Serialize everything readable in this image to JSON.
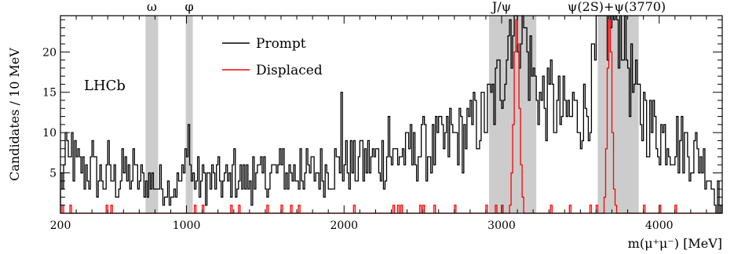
{
  "chart_data": {
    "type": "line",
    "subtype": "step-histogram",
    "xlabel": "m(μ⁺μ⁻) [MeV]",
    "ylabel": "Candidates / 10 MeV",
    "xlim": [
      200,
      4400
    ],
    "ylim": [
      0,
      24.5
    ],
    "bin_width": 10,
    "xticks": [
      200,
      1000,
      2000,
      3000,
      4000
    ],
    "yticks": [
      5,
      10,
      15,
      20
    ],
    "experiment_label": "LHCb",
    "legend": {
      "placement": "top-center",
      "entries": [
        {
          "name": "Prompt",
          "color": "#000000"
        },
        {
          "name": "Displaced",
          "color": "#ff0000"
        }
      ]
    },
    "shaded_regions": [
      {
        "label": "ω",
        "range": [
          740,
          820
        ],
        "color": "#cccccc"
      },
      {
        "label": "φ",
        "range": [
          995,
          1040
        ],
        "color": "#cccccc"
      },
      {
        "label": "J/ψ",
        "range": [
          2920,
          3220
        ],
        "color": "#cccccc"
      },
      {
        "label": "ψ(2S)+ψ(3770)",
        "range": [
          3610,
          3870
        ],
        "color": "#cccccc"
      }
    ],
    "series": [
      {
        "name": "Prompt",
        "color": "#000000",
        "anchors": [
          [
            200,
            4
          ],
          [
            260,
            6
          ],
          [
            300,
            6
          ],
          [
            400,
            5
          ],
          [
            500,
            4
          ],
          [
            600,
            4.5
          ],
          [
            700,
            4
          ],
          [
            800,
            4
          ],
          [
            900,
            3.5
          ],
          [
            990,
            4
          ],
          [
            1000,
            10
          ],
          [
            1010,
            13
          ],
          [
            1020,
            8
          ],
          [
            1030,
            4
          ],
          [
            1100,
            4
          ],
          [
            1200,
            4
          ],
          [
            1300,
            4
          ],
          [
            1400,
            4
          ],
          [
            1500,
            4.5
          ],
          [
            1600,
            5
          ],
          [
            1700,
            5
          ],
          [
            1800,
            5
          ],
          [
            1900,
            5.5
          ],
          [
            2000,
            6
          ],
          [
            2100,
            6
          ],
          [
            2200,
            6.5
          ],
          [
            2300,
            7
          ],
          [
            2400,
            7
          ],
          [
            2500,
            7.5
          ],
          [
            2600,
            8
          ],
          [
            2700,
            9
          ],
          [
            2800,
            10
          ],
          [
            2900,
            12
          ],
          [
            2950,
            14
          ],
          [
            3000,
            17
          ],
          [
            3040,
            21
          ],
          [
            3060,
            24.5
          ],
          [
            3140,
            24.5
          ],
          [
            3160,
            20
          ],
          [
            3200,
            17
          ],
          [
            3250,
            14
          ],
          [
            3300,
            13
          ],
          [
            3400,
            12
          ],
          [
            3500,
            12
          ],
          [
            3560,
            14
          ],
          [
            3600,
            19
          ],
          [
            3620,
            24.5
          ],
          [
            3720,
            24.5
          ],
          [
            3770,
            24.5
          ],
          [
            3800,
            19
          ],
          [
            3850,
            14
          ],
          [
            3900,
            12
          ],
          [
            4000,
            10
          ],
          [
            4100,
            9
          ],
          [
            4200,
            8
          ],
          [
            4300,
            6
          ],
          [
            4350,
            3
          ],
          [
            4400,
            1
          ]
        ],
        "spikes": [
          [
            230,
            10
          ],
          [
            270,
            10
          ],
          [
            400,
            9
          ],
          [
            500,
            9
          ],
          [
            590,
            8
          ],
          [
            660,
            8
          ],
          [
            1300,
            8
          ],
          [
            1420,
            7
          ],
          [
            1610,
            8
          ],
          [
            1720,
            8
          ],
          [
            1980,
            15
          ],
          [
            2110,
            9
          ],
          [
            2280,
            12
          ],
          [
            2420,
            11
          ],
          [
            2500,
            12
          ],
          [
            2600,
            12
          ],
          [
            2670,
            13
          ],
          [
            2820,
            15
          ],
          [
            3310,
            19
          ],
          [
            3450,
            15
          ],
          [
            3900,
            15
          ]
        ]
      },
      {
        "name": "Displaced",
        "color": "#ff0000",
        "baseline_spikes": [
          210,
          260,
          490,
          520,
          1050,
          1100,
          1280,
          1330,
          1510,
          1600,
          1660,
          1710,
          2060,
          2310,
          2340,
          2360,
          2480,
          2500,
          2570,
          2700,
          2900,
          2960,
          3000,
          3310,
          3430,
          3560,
          3600,
          3900,
          4000,
          4100
        ],
        "peaks": [
          {
            "center": 3096,
            "height": 24.5,
            "width": 17
          },
          {
            "center": 3686,
            "height": 24.5,
            "width": 14
          }
        ]
      }
    ]
  }
}
